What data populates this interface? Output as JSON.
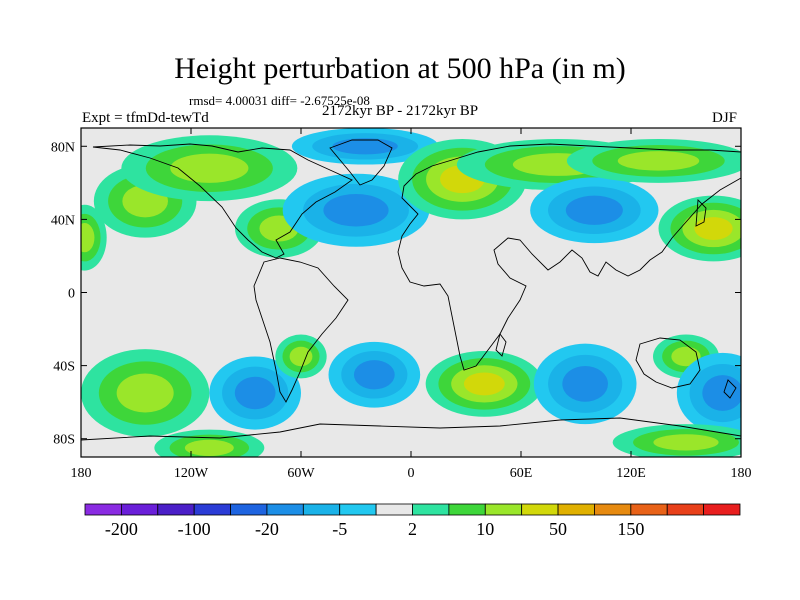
{
  "chart_data": {
    "type": "heatmap",
    "title": "Height perturbation at 500 hPa (in m)",
    "stats_text": "rmsd= 4.00031 diff= -2.67525e-08",
    "experiment": "Expt = tfmDd-tewTd",
    "period": "2172kyr BP - 2172kyr BP",
    "season": "DJF",
    "x_range": [
      -180,
      180
    ],
    "y_range": [
      -90,
      90
    ],
    "x_ticks": [
      {
        "value": -180,
        "label": "180"
      },
      {
        "value": -120,
        "label": "120W"
      },
      {
        "value": -60,
        "label": "60W"
      },
      {
        "value": 0,
        "label": "0"
      },
      {
        "value": 60,
        "label": "60E"
      },
      {
        "value": 120,
        "label": "120E"
      },
      {
        "value": 180,
        "label": "180"
      }
    ],
    "y_ticks": [
      {
        "value": 80,
        "label": "80N"
      },
      {
        "value": 40,
        "label": "40N"
      },
      {
        "value": 0,
        "label": "0"
      },
      {
        "value": -40,
        "label": "40S"
      },
      {
        "value": -80,
        "label": "80S"
      }
    ],
    "colorbar": {
      "colors": [
        "#8a2be2",
        "#6a1fd9",
        "#4b1fc8",
        "#2b3cd6",
        "#1e64e0",
        "#1c8ee6",
        "#1ab2e8",
        "#22c8f0",
        "#e8e8e8",
        "#2ee3a0",
        "#3ed63a",
        "#9ae62a",
        "#d2d80a",
        "#e0b000",
        "#e68a10",
        "#e86218",
        "#e8401a",
        "#e81e1e"
      ],
      "labels": [
        {
          "after_box": 1,
          "text": "-200"
        },
        {
          "after_box": 3,
          "text": "-100"
        },
        {
          "after_box": 5,
          "text": "-20"
        },
        {
          "after_box": 7,
          "text": "-5"
        },
        {
          "after_box": 9,
          "text": "2"
        },
        {
          "after_box": 11,
          "text": "10"
        },
        {
          "after_box": 13,
          "text": "50"
        },
        {
          "after_box": 15,
          "text": "150"
        }
      ]
    },
    "anomalies": [
      {
        "lon": -145,
        "lat": 50,
        "lon_radius": 28,
        "lat_radius": 20,
        "level": 3
      },
      {
        "lon": -178,
        "lat": 30,
        "lon_radius": 12,
        "lat_radius": 18,
        "level": 3
      },
      {
        "lon": -110,
        "lat": 68,
        "lon_radius": 48,
        "lat_radius": 18,
        "level": 3
      },
      {
        "lon": -72,
        "lat": 35,
        "lon_radius": 24,
        "lat_radius": 16,
        "level": 3
      },
      {
        "lon": -30,
        "lat": 45,
        "lon_radius": 40,
        "lat_radius": 20,
        "level": -3
      },
      {
        "lon": -25,
        "lat": 80,
        "lon_radius": 40,
        "lat_radius": 10,
        "level": -3
      },
      {
        "lon": 28,
        "lat": 62,
        "lon_radius": 35,
        "lat_radius": 22,
        "level": 4
      },
      {
        "lon": 80,
        "lat": 70,
        "lon_radius": 55,
        "lat_radius": 14,
        "level": 3
      },
      {
        "lon": 100,
        "lat": 45,
        "lon_radius": 35,
        "lat_radius": 18,
        "level": -3
      },
      {
        "lon": 135,
        "lat": 72,
        "lon_radius": 50,
        "lat_radius": 12,
        "level": 3
      },
      {
        "lon": 165,
        "lat": 35,
        "lon_radius": 30,
        "lat_radius": 18,
        "level": 4
      },
      {
        "lon": -145,
        "lat": -55,
        "lon_radius": 35,
        "lat_radius": 24,
        "level": 3
      },
      {
        "lon": -85,
        "lat": -55,
        "lon_radius": 25,
        "lat_radius": 20,
        "level": -3
      },
      {
        "lon": -60,
        "lat": -35,
        "lon_radius": 14,
        "lat_radius": 12,
        "level": 3
      },
      {
        "lon": -20,
        "lat": -45,
        "lon_radius": 25,
        "lat_radius": 18,
        "level": -3
      },
      {
        "lon": 40,
        "lat": -50,
        "lon_radius": 32,
        "lat_radius": 18,
        "level": 4
      },
      {
        "lon": 95,
        "lat": -50,
        "lon_radius": 28,
        "lat_radius": 22,
        "level": -3
      },
      {
        "lon": 150,
        "lat": -35,
        "lon_radius": 18,
        "lat_radius": 12,
        "level": 3
      },
      {
        "lon": 170,
        "lat": -55,
        "lon_radius": 25,
        "lat_radius": 22,
        "level": -3
      },
      {
        "lon": -110,
        "lat": -85,
        "lon_radius": 30,
        "lat_radius": 10,
        "level": 3
      },
      {
        "lon": 150,
        "lat": -82,
        "lon_radius": 40,
        "lat_radius": 10,
        "level": 3
      }
    ]
  }
}
